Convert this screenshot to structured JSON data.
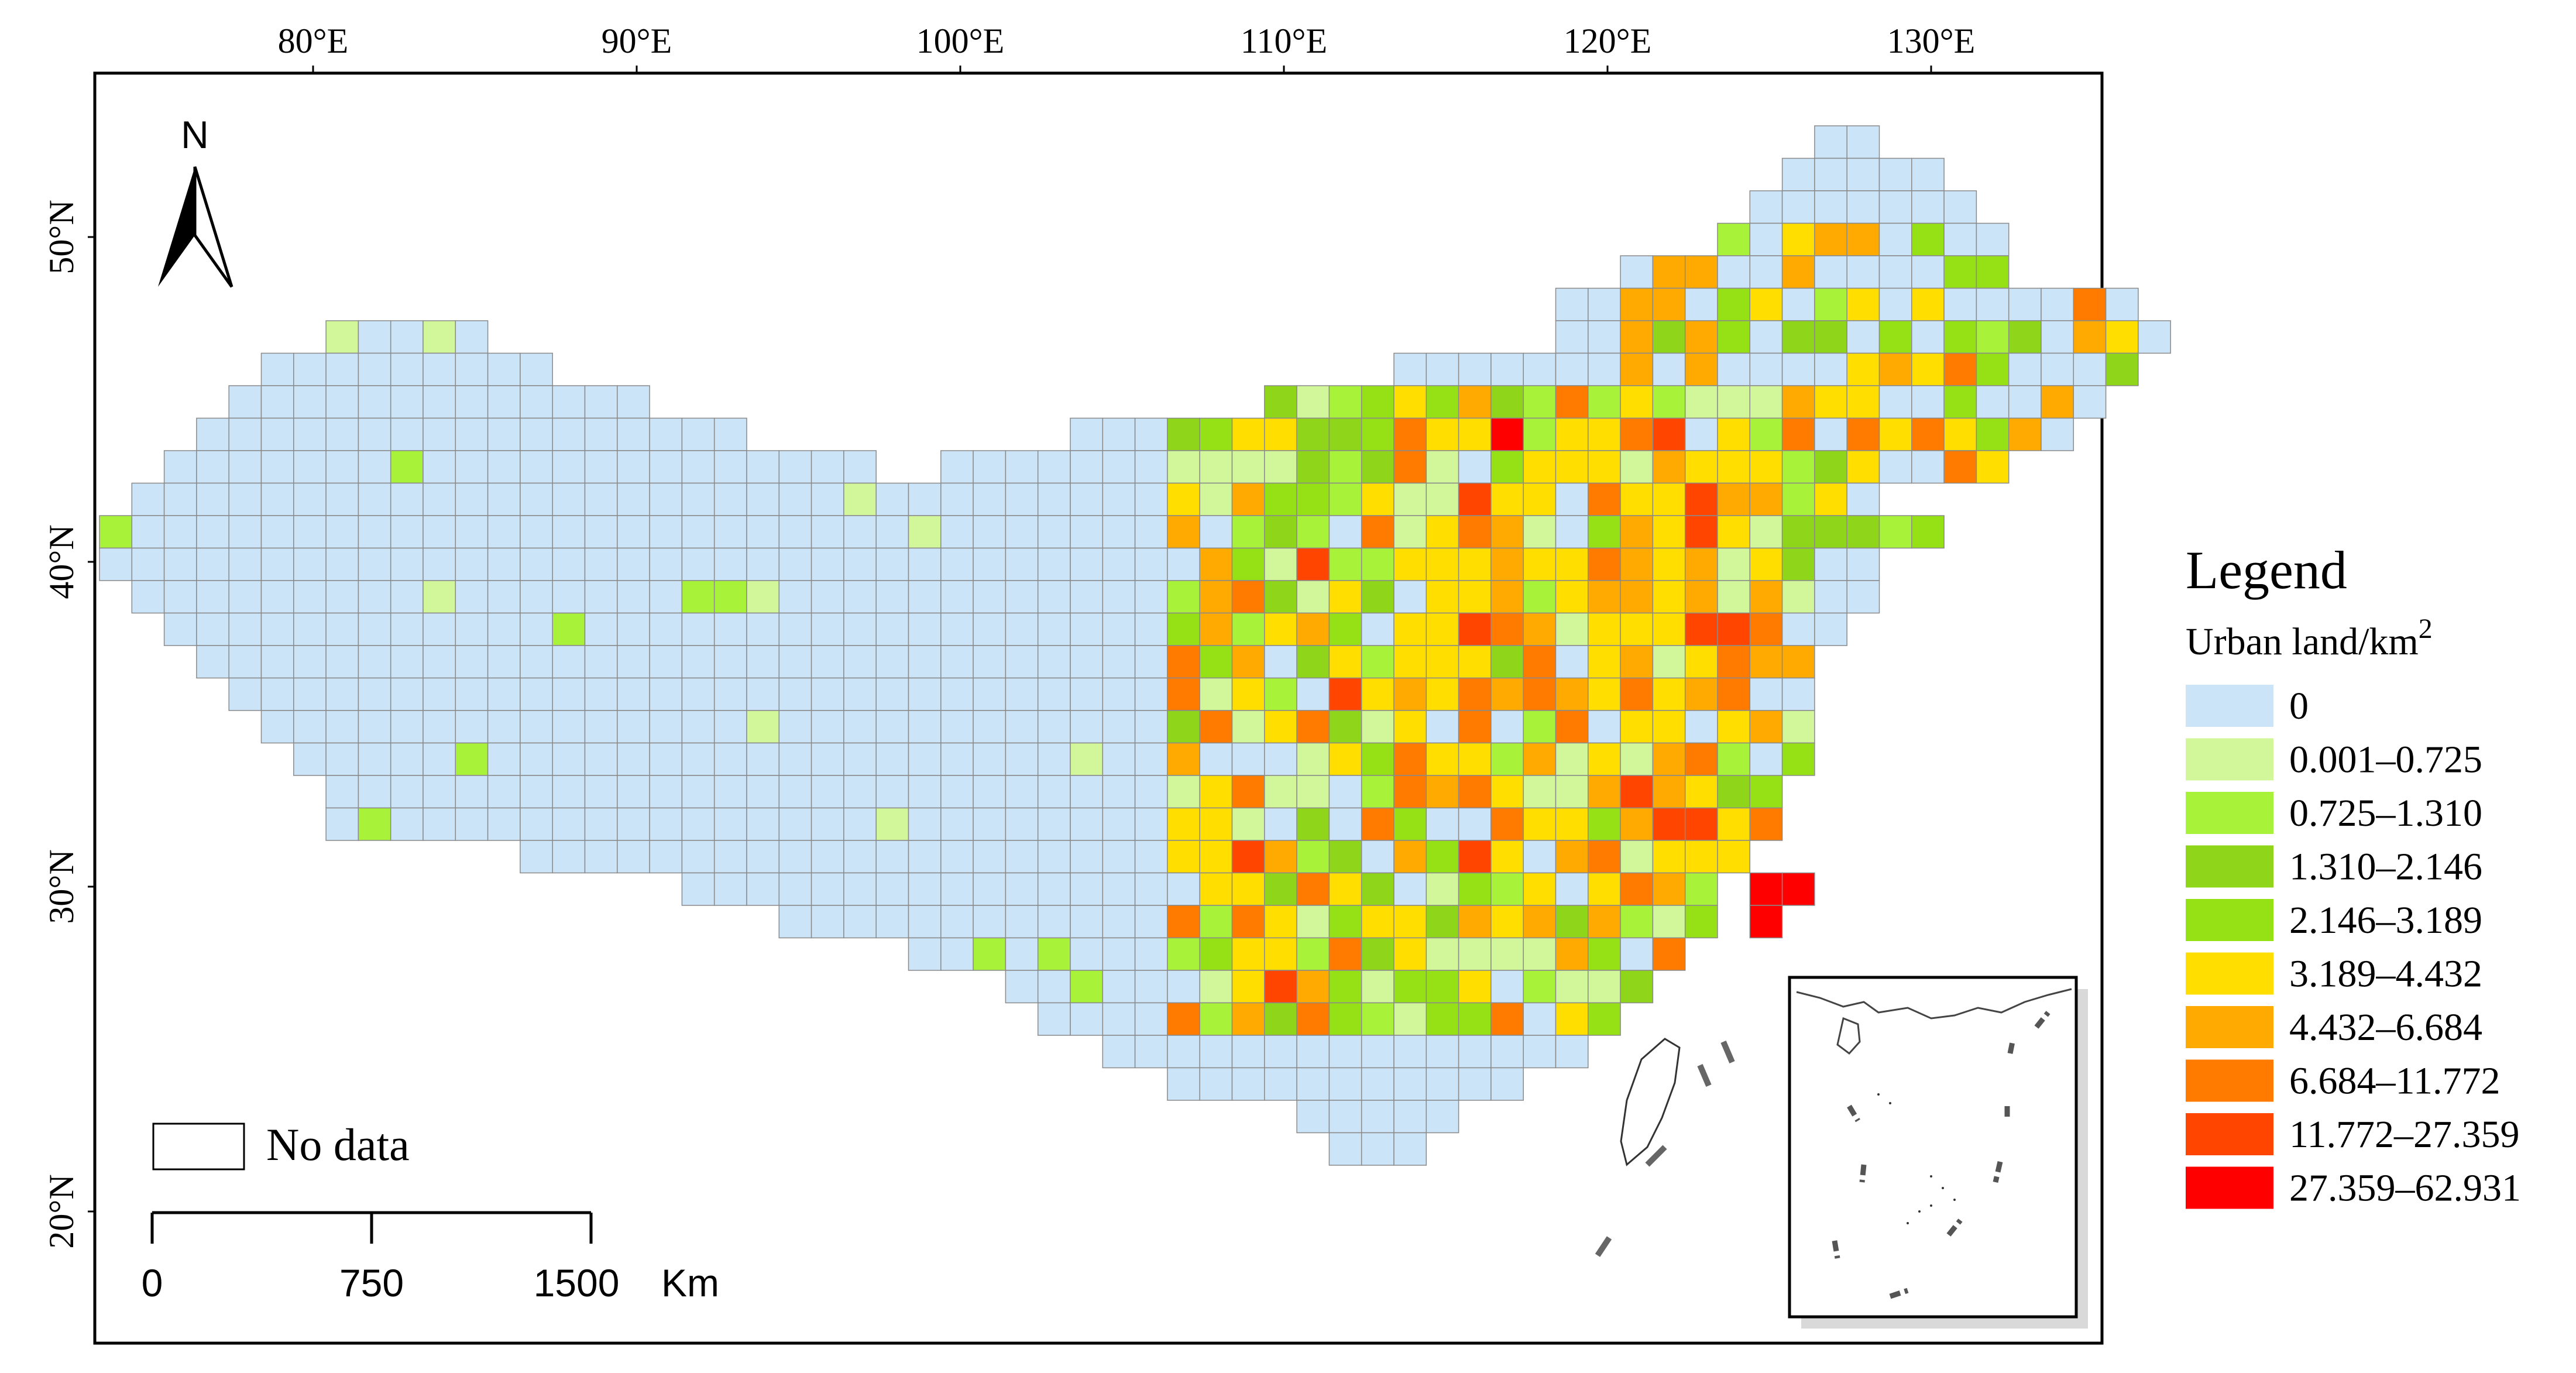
{
  "map": {
    "north_label": "N",
    "longitude_labels": [
      "80°E",
      "90°E",
      "100°E",
      "110°E",
      "120°E",
      "130°E"
    ],
    "longitude_values": [
      80,
      90,
      100,
      110,
      120,
      130
    ],
    "latitude_labels": [
      "50°N",
      "40°N",
      "30°N",
      "20°N"
    ],
    "latitude_values": [
      50,
      40,
      30,
      20
    ],
    "no_data_label": "No data",
    "scale_bar": {
      "ticks": [
        "0",
        "750",
        "1500"
      ],
      "unit": "Km"
    },
    "grid_cell_size_degrees": 1
  },
  "legend": {
    "title": "Legend",
    "subtitle": "Urban land/km",
    "subtitle_superscript": "2",
    "classes": [
      {
        "label": "0",
        "color": "#cce4f7"
      },
      {
        "label": "0.001–0.725",
        "color": "#d2f79a"
      },
      {
        "label": "0.725–1.310",
        "color": "#a8f23a"
      },
      {
        "label": "1.310–2.146",
        "color": "#8fd61a"
      },
      {
        "label": "2.146–3.189",
        "color": "#96e016"
      },
      {
        "label": "3.189–4.432",
        "color": "#ffde00"
      },
      {
        "label": "4.432–6.684",
        "color": "#ffaa00"
      },
      {
        "label": "6.684–11.772",
        "color": "#ff7b00"
      },
      {
        "label": "11.772–27.359",
        "color": "#ff4500"
      },
      {
        "label": "27.359–62.931",
        "color": "#ff0000"
      }
    ]
  }
}
